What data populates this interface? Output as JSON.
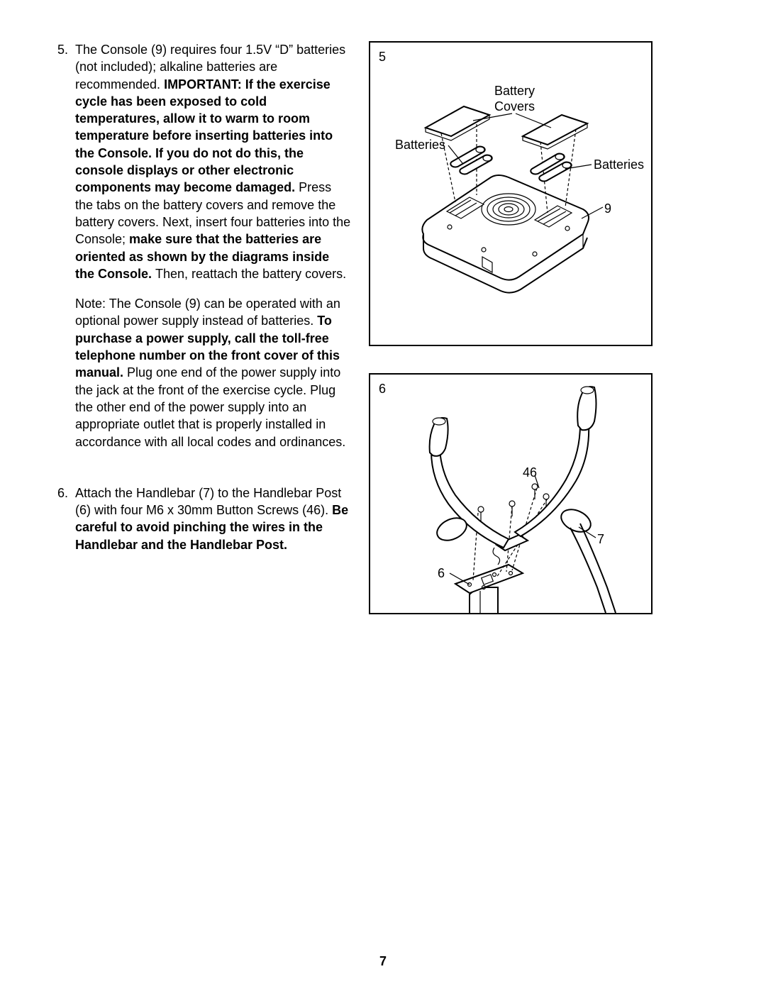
{
  "page_number": "7",
  "steps": [
    {
      "num": "5.",
      "paragraphs": [
        {
          "runs": [
            {
              "t": "The Console (9) requires four 1.5V “D” batteries (not included); alkaline batteries are recommended. ",
              "b": false
            },
            {
              "t": "IMPORTANT: If the exercise cycle has been exposed to cold temperatures, allow it to warm to room temperature before inserting batteries into the Console. If you do not do this, the console displays or other electronic components may become damaged. ",
              "b": true
            },
            {
              "t": "Press the tabs on the battery covers and remove the battery covers. Next, insert four batteries into the Console; ",
              "b": false
            },
            {
              "t": "make sure that the batteries are oriented as shown by the diagrams inside the Console. ",
              "b": true
            },
            {
              "t": "Then, reattach the battery covers.",
              "b": false
            }
          ]
        },
        {
          "runs": [
            {
              "t": "Note: The Console (9) can be operated with an optional power supply instead of batteries. ",
              "b": false
            },
            {
              "t": "To purchase a power supply, call the toll-free telephone number on the front cover of this manual. ",
              "b": true
            },
            {
              "t": "Plug one end of the power supply into the jack at the front of the exercise cycle. Plug the other end of the power supply into an appropriate outlet that is properly installed in accordance with all local codes and ordinances.",
              "b": false
            }
          ]
        }
      ]
    },
    {
      "num": "6.",
      "paragraphs": [
        {
          "runs": [
            {
              "t": "Attach the Handlebar (7) to the Handlebar Post (6) with four M6 x 30mm Button Screws (46). ",
              "b": false
            },
            {
              "t": "Be careful to avoid pinching the wires in the Handlebar and the Handlebar Post.",
              "b": true
            }
          ]
        }
      ]
    }
  ],
  "figure5": {
    "num": "5",
    "labels": {
      "battery_covers": "Battery\nCovers",
      "batteries_left": "Batteries",
      "batteries_right": "Batteries",
      "nine": "9"
    }
  },
  "figure6": {
    "num": "6",
    "labels": {
      "fortysix": "46",
      "seven": "7",
      "six": "6"
    }
  }
}
